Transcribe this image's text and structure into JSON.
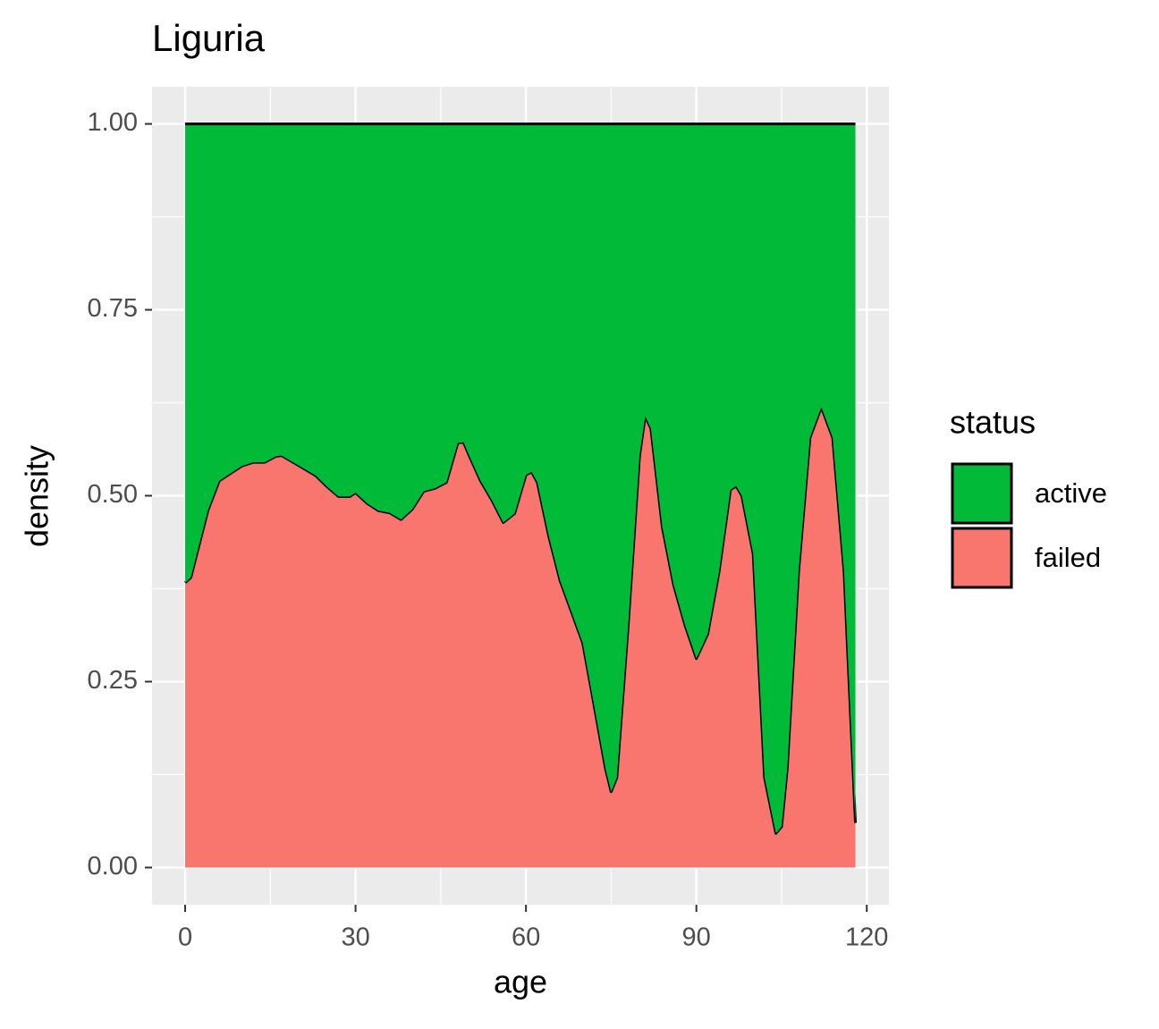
{
  "chart_data": {
    "type": "stacked_area",
    "title": "Liguria",
    "x_label": "age",
    "y_label": "density",
    "legend_title": "status",
    "x": [
      0,
      1,
      2,
      4,
      6,
      8,
      10,
      12,
      14,
      16,
      17,
      19,
      21,
      23,
      25,
      27,
      29,
      30,
      32,
      34,
      36,
      38,
      40,
      42,
      44,
      46,
      48,
      49,
      50,
      52,
      54,
      56,
      58,
      60,
      61,
      62,
      64,
      66,
      68,
      70,
      72,
      74,
      75,
      76,
      78,
      80,
      81,
      82,
      84,
      86,
      88,
      90,
      92,
      94,
      96,
      97,
      98,
      100,
      102,
      104,
      105,
      106,
      108,
      110,
      112,
      114,
      116,
      118
    ],
    "series": [
      {
        "name": "active",
        "color": "#00BA38",
        "values": [
          0.617,
          0.61,
          0.58,
          0.52,
          0.48,
          0.47,
          0.46,
          0.455,
          0.455,
          0.447,
          0.446,
          0.455,
          0.464,
          0.473,
          0.488,
          0.501,
          0.501,
          0.496,
          0.51,
          0.52,
          0.523,
          0.532,
          0.518,
          0.494,
          0.49,
          0.482,
          0.429,
          0.428,
          0.446,
          0.48,
          0.506,
          0.536,
          0.524,
          0.472,
          0.468,
          0.482,
          0.554,
          0.614,
          0.656,
          0.698,
          0.782,
          0.867,
          0.898,
          0.879,
          0.674,
          0.446,
          0.393,
          0.41,
          0.542,
          0.62,
          0.674,
          0.719,
          0.686,
          0.602,
          0.492,
          0.487,
          0.5,
          0.578,
          0.879,
          0.954,
          0.945,
          0.867,
          0.602,
          0.422,
          0.381,
          0.422,
          0.602,
          0.94
        ]
      },
      {
        "name": "failed",
        "color": "#F8766D",
        "values": [
          0.383,
          0.39,
          0.42,
          0.48,
          0.52,
          0.53,
          0.54,
          0.545,
          0.545,
          0.553,
          0.554,
          0.545,
          0.536,
          0.527,
          0.512,
          0.499,
          0.499,
          0.504,
          0.49,
          0.48,
          0.477,
          0.468,
          0.482,
          0.506,
          0.51,
          0.518,
          0.571,
          0.572,
          0.554,
          0.52,
          0.494,
          0.464,
          0.476,
          0.528,
          0.532,
          0.518,
          0.446,
          0.386,
          0.344,
          0.302,
          0.218,
          0.133,
          0.102,
          0.121,
          0.326,
          0.554,
          0.607,
          0.59,
          0.458,
          0.38,
          0.326,
          0.281,
          0.314,
          0.398,
          0.508,
          0.513,
          0.5,
          0.422,
          0.121,
          0.046,
          0.055,
          0.133,
          0.398,
          0.578,
          0.619,
          0.578,
          0.398,
          0.06
        ]
      }
    ],
    "xlim": [
      -5.83,
      123.9
    ],
    "ylim": [
      -0.05,
      1.05
    ],
    "xticks": [
      0,
      30,
      60,
      90,
      120
    ],
    "yticks": [
      {
        "value": 0,
        "label": "0.00"
      },
      {
        "value": 0.25,
        "label": "0.25"
      },
      {
        "value": 0.5,
        "label": "0.50"
      },
      {
        "value": 0.75,
        "label": "0.75"
      },
      {
        "value": 1,
        "label": "1.00"
      }
    ],
    "grid": true
  }
}
